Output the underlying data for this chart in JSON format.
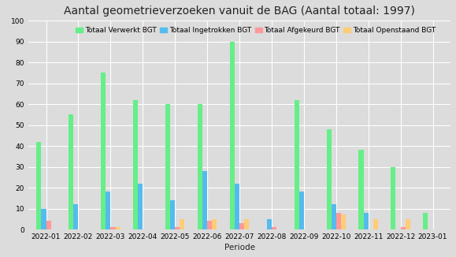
{
  "title": "Aantal geometrieverzoeken vanuit de BAG (Aantal totaal: 1997)",
  "xlabel": "Periode",
  "ylabel": "",
  "background_color": "#dcdcdc",
  "plot_background_color": "#dcdcdc",
  "categories": [
    "2022-01",
    "2022-02",
    "2022-03",
    "2022-04",
    "2022-05",
    "2022-06",
    "2022-07",
    "2022-08",
    "2022-09",
    "2022-10",
    "2022-11",
    "2022-12",
    "2023-01"
  ],
  "series": {
    "Totaal Verwerkt BGT": [
      42,
      55,
      75,
      62,
      60,
      60,
      90,
      0,
      62,
      48,
      38,
      30,
      8
    ],
    "Totaal Ingetrokken BGT": [
      10,
      12,
      18,
      22,
      14,
      28,
      22,
      5,
      18,
      12,
      8,
      0,
      0
    ],
    "Totaal Afgekeurd BGT": [
      4,
      0,
      1,
      0,
      1,
      4,
      3,
      1,
      0,
      8,
      0,
      1,
      0
    ],
    "Totaal Openstaand BGT": [
      0,
      0,
      1,
      0,
      5,
      5,
      5,
      0,
      0,
      7,
      5,
      5,
      0
    ]
  },
  "colors": {
    "Totaal Verwerkt BGT": "#66ee88",
    "Totaal Ingetrokken BGT": "#55bbee",
    "Totaal Afgekeurd BGT": "#ff9999",
    "Totaal Openstaand BGT": "#ffcc77"
  },
  "ylim": [
    0,
    100
  ],
  "yticks": [
    0,
    10,
    20,
    30,
    40,
    50,
    60,
    70,
    80,
    90,
    100
  ],
  "grid_color": "#ffffff",
  "title_fontsize": 10,
  "tick_fontsize": 6.5,
  "legend_fontsize": 6.5
}
